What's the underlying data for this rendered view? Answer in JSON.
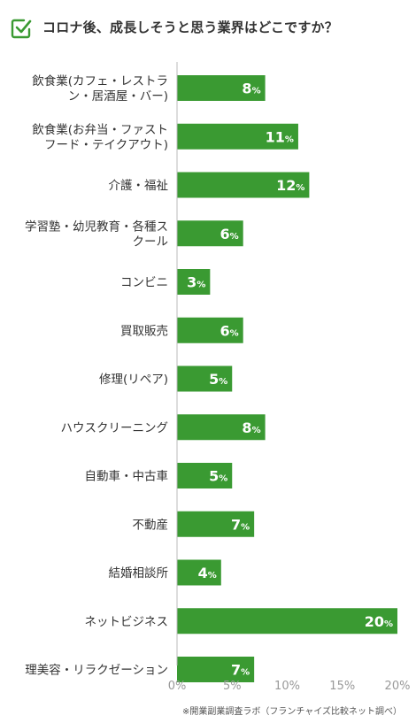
{
  "title": "コロナ後、成長しそうと思う業界はどこですか？",
  "icon": "checkbox-check-icon",
  "colors": {
    "accent": "#3a9a32",
    "axis": "#bbbbbb",
    "tick_text": "#999999"
  },
  "footnote": "※開業副業調査ラボ（フランチャイズ比較ネット調べ）",
  "chart_data": {
    "type": "bar",
    "orientation": "horizontal",
    "categories": [
      [
        "飲食業(カフェ・レストラ",
        "ン・居酒屋・バー)"
      ],
      [
        "飲食業(お弁当・ファスト",
        "フード・テイクアウト)"
      ],
      [
        "介護・福祉"
      ],
      [
        "学習塾・幼児教育・各種ス",
        "クール"
      ],
      [
        "コンビニ"
      ],
      [
        "買取販売"
      ],
      [
        "修理(リペア)"
      ],
      [
        "ハウスクリーニング"
      ],
      [
        "自動車・中古車"
      ],
      [
        "不動産"
      ],
      [
        "結婚相談所"
      ],
      [
        "ネットビジネス"
      ],
      [
        "理美容・リラクゼーション"
      ]
    ],
    "values": [
      8,
      11,
      12,
      6,
      3,
      6,
      5,
      8,
      5,
      7,
      4,
      20,
      7
    ],
    "value_suffix": "%",
    "xlim": [
      0,
      20
    ],
    "ticks": [
      "0%",
      "5%",
      "10%",
      "15%",
      "20%"
    ],
    "tick_values": [
      0,
      5,
      10,
      15,
      20
    ],
    "grid": false
  }
}
